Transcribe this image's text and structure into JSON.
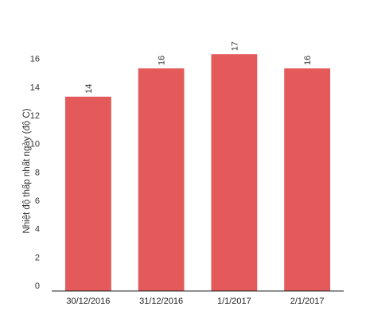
{
  "chart_data": {
    "type": "bar",
    "categories": [
      "30/12/2016",
      "31/12/2016",
      "1/1/2017",
      "2/1/2017"
    ],
    "values": [
      13.7,
      15.7,
      16.7,
      15.7
    ],
    "data_labels": [
      "14",
      "16",
      "17",
      "16"
    ],
    "xlabel": "",
    "ylabel": "Nhiệt độ thấp nhất ngày (độ C)",
    "ylim": [
      0,
      18
    ],
    "yticks": [
      "0",
      "2",
      "4",
      "6",
      "8",
      "10",
      "12",
      "14",
      "16"
    ],
    "grid": false,
    "legend": "none",
    "bar_color": "#e45a5a"
  }
}
